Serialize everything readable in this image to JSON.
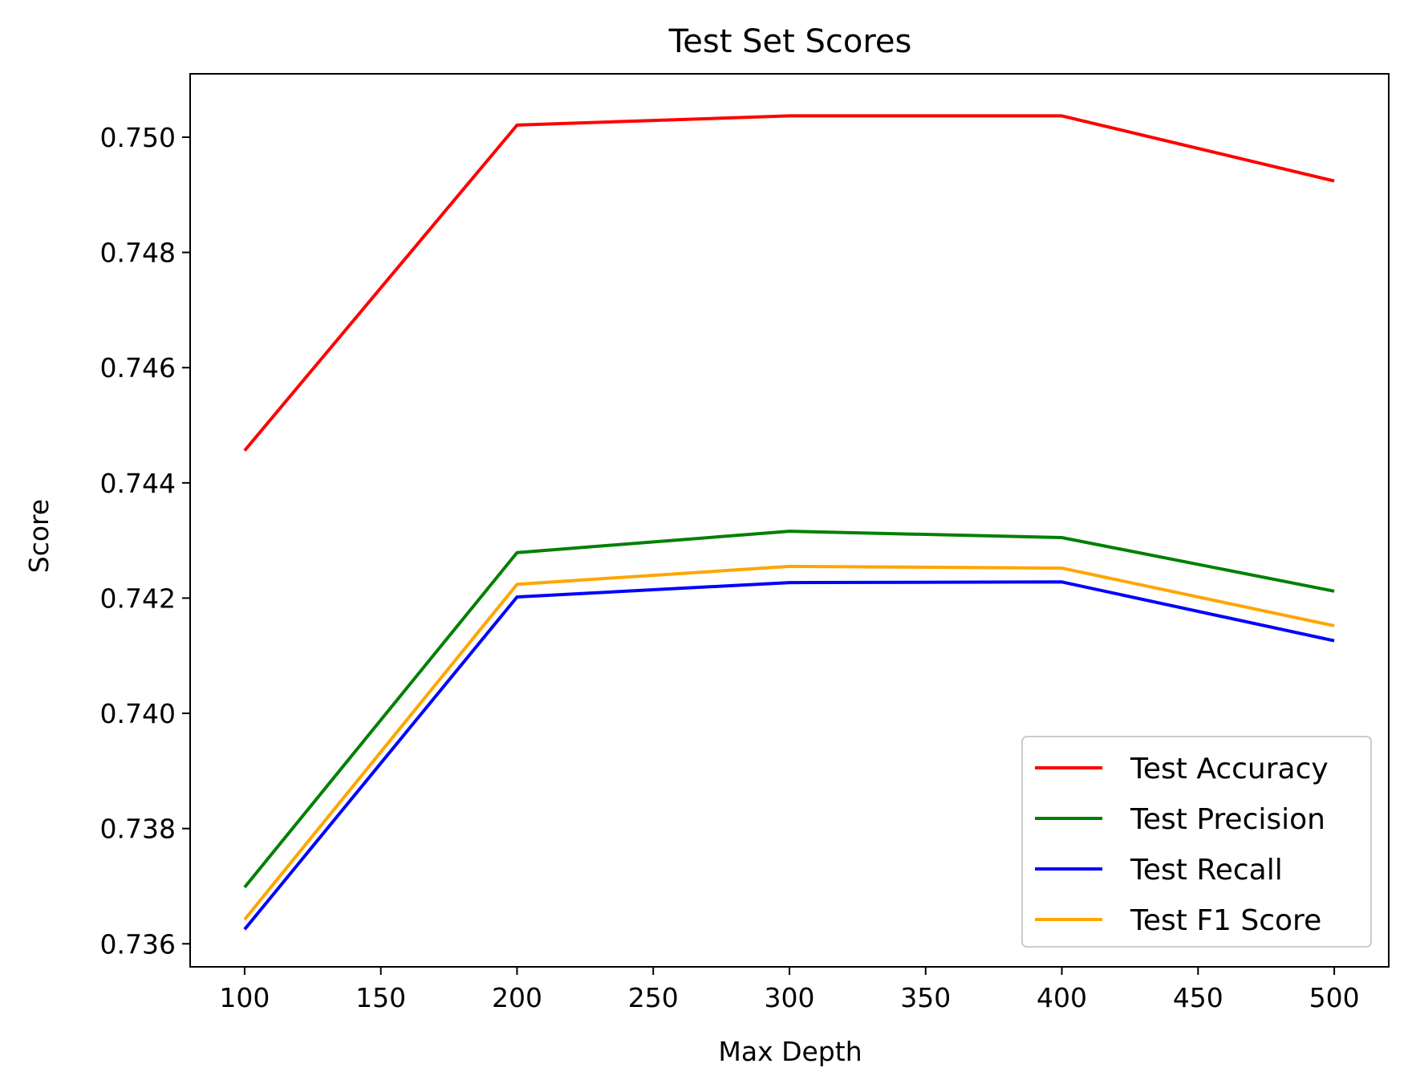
{
  "chart_data": {
    "type": "line",
    "title": "Test Set Scores",
    "xlabel": "Max Depth",
    "ylabel": "Score",
    "x": [
      100,
      200,
      300,
      400,
      500
    ],
    "xlim": [
      80,
      520
    ],
    "ylim": [
      0.7356,
      0.7511
    ],
    "xticks": [
      100,
      150,
      200,
      250,
      300,
      350,
      400,
      450,
      500
    ],
    "yticks": [
      0.736,
      0.738,
      0.74,
      0.742,
      0.744,
      0.746,
      0.748,
      0.75
    ],
    "ytick_labels": [
      "0.736",
      "0.738",
      "0.740",
      "0.742",
      "0.744",
      "0.746",
      "0.748",
      "0.750"
    ],
    "grid": false,
    "legend_position": "lower-right",
    "series": [
      {
        "name": "Test Accuracy",
        "color": "#ff0000",
        "values": [
          0.74456,
          0.75021,
          0.75037,
          0.75037,
          0.74924
        ]
      },
      {
        "name": "Test Precision",
        "color": "#008000",
        "values": [
          0.73698,
          0.74279,
          0.74316,
          0.74305,
          0.74212
        ]
      },
      {
        "name": "Test Recall",
        "color": "#0000ff",
        "values": [
          0.73625,
          0.74202,
          0.74227,
          0.74228,
          0.74126
        ]
      },
      {
        "name": "Test F1 Score",
        "color": "#ffa500",
        "values": [
          0.73642,
          0.74224,
          0.74255,
          0.74252,
          0.74152
        ]
      }
    ]
  }
}
